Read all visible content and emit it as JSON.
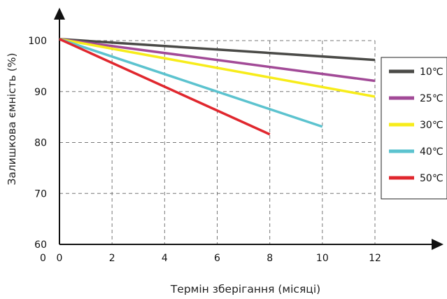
{
  "chart_data": {
    "type": "line",
    "xlabel": "Термін зберігання (місяці)",
    "ylabel": "Залишкова ємність (%)",
    "x_ticks": [
      "0",
      "2",
      "4",
      "6",
      "8",
      "10",
      "12"
    ],
    "y_ticks": [
      "60",
      "70",
      "80",
      "90",
      "100"
    ],
    "stray_label": "0",
    "xlim": [
      0,
      12
    ],
    "ylim": [
      60,
      100
    ],
    "grid": true,
    "legend_position": "right",
    "series": [
      {
        "name": "10℃",
        "color": "#4a4a47",
        "x": [
          0,
          12
        ],
        "y": [
          100.3,
          96.2
        ]
      },
      {
        "name": "25℃",
        "color": "#a24a97",
        "x": [
          0,
          12
        ],
        "y": [
          100.3,
          92.1
        ]
      },
      {
        "name": "30℃",
        "color": "#f7ec1a",
        "x": [
          0,
          12
        ],
        "y": [
          100.3,
          89.0
        ]
      },
      {
        "name": "40℃",
        "color": "#5cc3cf",
        "x": [
          0,
          10
        ],
        "y": [
          100.3,
          83.1
        ]
      },
      {
        "name": "50℃",
        "color": "#e0272e",
        "x": [
          0,
          8
        ],
        "y": [
          100.3,
          81.6
        ]
      }
    ]
  }
}
